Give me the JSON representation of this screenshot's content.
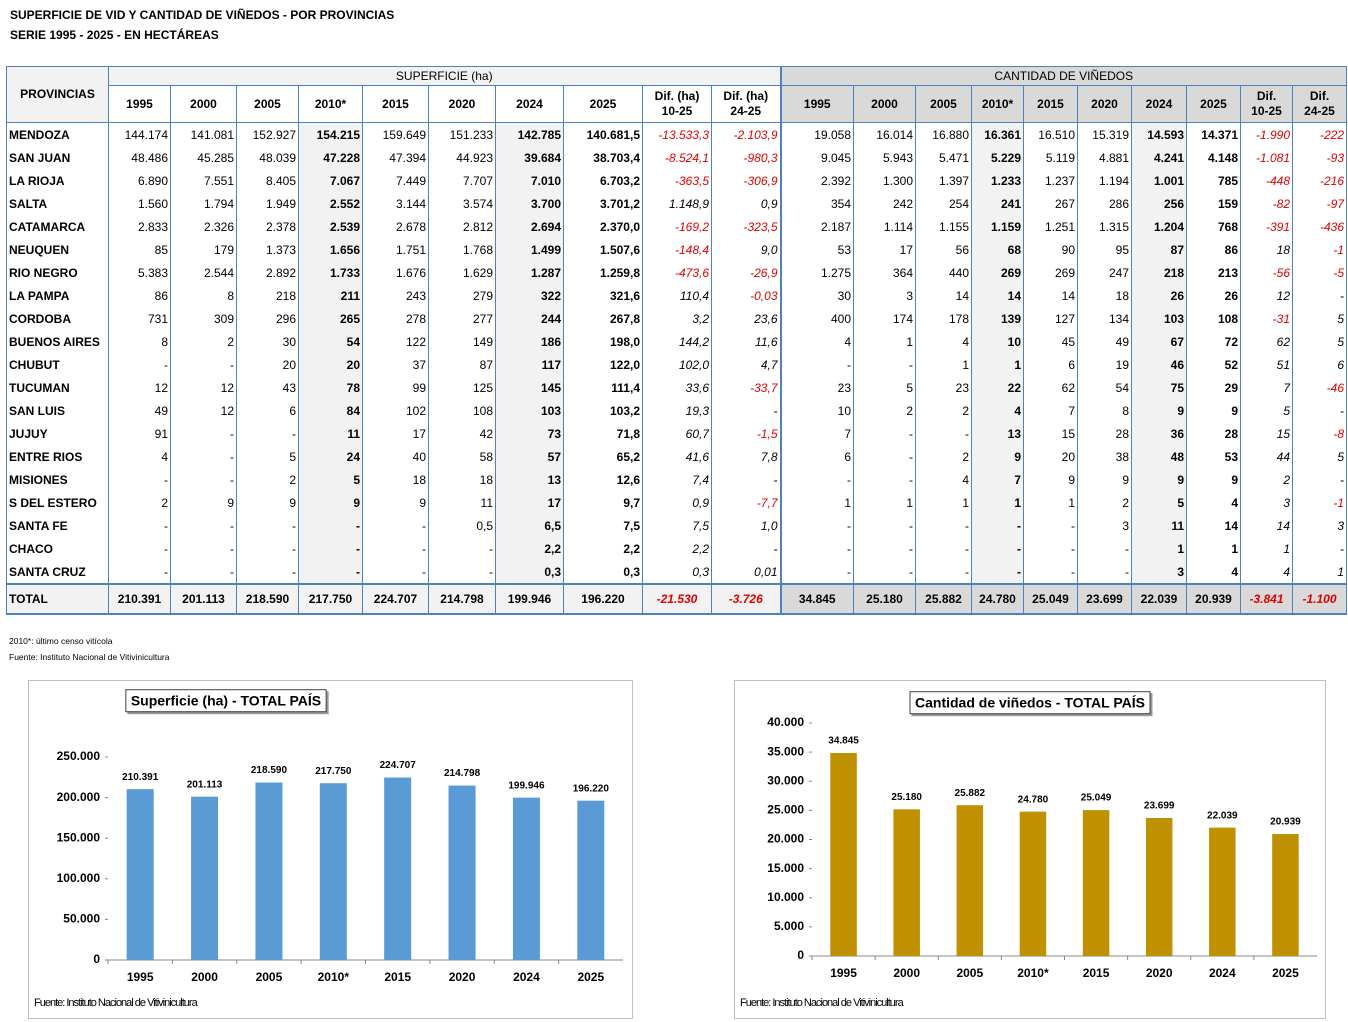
{
  "header": {
    "title": "SUPERFICIE DE VID Y CANTIDAD DE VIÑEDOS - POR PROVINCIAS",
    "subtitle": "SERIE 1995 - 2025 - EN HECTÁREAS"
  },
  "table": {
    "first_header": "PROVINCIAS",
    "group_headers": [
      "SUPERFICIE (ha)",
      "CANTIDAD DE VIÑEDOS"
    ],
    "columns": [
      "1995",
      "2000",
      "2005",
      "2010*",
      "2015",
      "2020",
      "2024",
      "2025",
      "Dif. (ha)\n10-25",
      "Dif. (ha)\n24-25",
      "1995",
      "2000",
      "2005",
      "2010*",
      "2015",
      "2020",
      "2024",
      "2025",
      "Dif.\n10-25",
      "Dif.\n24-25"
    ],
    "rows": [
      [
        "MENDOZA",
        "144.174",
        "141.081",
        "152.927",
        "154.215",
        "159.649",
        "151.233",
        "142.785",
        "140.681,5",
        "-13.533,3",
        "-2.103,9",
        "19.058",
        "16.014",
        "16.880",
        "16.361",
        "16.510",
        "15.319",
        "14.593",
        "14.371",
        "-1.990",
        "-222"
      ],
      [
        "SAN JUAN",
        "48.486",
        "45.285",
        "48.039",
        "47.228",
        "47.394",
        "44.923",
        "39.684",
        "38.703,4",
        "-8.524,1",
        "-980,3",
        "9.045",
        "5.943",
        "5.471",
        "5.229",
        "5.119",
        "4.881",
        "4.241",
        "4.148",
        "-1.081",
        "-93"
      ],
      [
        "LA RIOJA",
        "6.890",
        "7.551",
        "8.405",
        "7.067",
        "7.449",
        "7.707",
        "7.010",
        "6.703,2",
        "-363,5",
        "-306,9",
        "2.392",
        "1.300",
        "1.397",
        "1.233",
        "1.237",
        "1.194",
        "1.001",
        "785",
        "-448",
        "-216"
      ],
      [
        "SALTA",
        "1.560",
        "1.794",
        "1.949",
        "2.552",
        "3.144",
        "3.574",
        "3.700",
        "3.701,2",
        "1.148,9",
        "0,9",
        "354",
        "242",
        "254",
        "241",
        "267",
        "286",
        "256",
        "159",
        "-82",
        "-97"
      ],
      [
        "CATAMARCA",
        "2.833",
        "2.326",
        "2.378",
        "2.539",
        "2.678",
        "2.812",
        "2.694",
        "2.370,0",
        "-169,2",
        "-323,5",
        "2.187",
        "1.114",
        "1.155",
        "1.159",
        "1.251",
        "1.315",
        "1.204",
        "768",
        "-391",
        "-436"
      ],
      [
        "NEUQUEN",
        "85",
        "179",
        "1.373",
        "1.656",
        "1.751",
        "1.768",
        "1.499",
        "1.507,6",
        "-148,4",
        "9,0",
        "53",
        "17",
        "56",
        "68",
        "90",
        "95",
        "87",
        "86",
        "18",
        "-1"
      ],
      [
        "RIO NEGRO",
        "5.383",
        "2.544",
        "2.892",
        "1.733",
        "1.676",
        "1.629",
        "1.287",
        "1.259,8",
        "-473,6",
        "-26,9",
        "1.275",
        "364",
        "440",
        "269",
        "269",
        "247",
        "218",
        "213",
        "-56",
        "-5"
      ],
      [
        "LA PAMPA",
        "86",
        "8",
        "218",
        "211",
        "243",
        "279",
        "322",
        "321,6",
        "110,4",
        "-0,03",
        "30",
        "3",
        "14",
        "14",
        "14",
        "18",
        "26",
        "26",
        "12",
        "-"
      ],
      [
        "CORDOBA",
        "731",
        "309",
        "296",
        "265",
        "278",
        "277",
        "244",
        "267,8",
        "3,2",
        "23,6",
        "400",
        "174",
        "178",
        "139",
        "127",
        "134",
        "103",
        "108",
        "-31",
        "5"
      ],
      [
        "BUENOS AIRES",
        "8",
        "2",
        "30",
        "54",
        "122",
        "149",
        "186",
        "198,0",
        "144,2",
        "11,6",
        "4",
        "1",
        "4",
        "10",
        "45",
        "49",
        "67",
        "72",
        "62",
        "5"
      ],
      [
        "CHUBUT",
        "-",
        "-",
        "20",
        "20",
        "37",
        "87",
        "117",
        "122,0",
        "102,0",
        "4,7",
        "-",
        "-",
        "1",
        "1",
        "6",
        "19",
        "46",
        "52",
        "51",
        "6"
      ],
      [
        "TUCUMAN",
        "12",
        "12",
        "43",
        "78",
        "99",
        "125",
        "145",
        "111,4",
        "33,6",
        "-33,7",
        "23",
        "5",
        "23",
        "22",
        "62",
        "54",
        "75",
        "29",
        "7",
        "-46"
      ],
      [
        "SAN LUIS",
        "49",
        "12",
        "6",
        "84",
        "102",
        "108",
        "103",
        "103,2",
        "19,3",
        "-",
        "10",
        "2",
        "2",
        "4",
        "7",
        "8",
        "9",
        "9",
        "5",
        "-"
      ],
      [
        "JUJUY",
        "91",
        "-",
        "-",
        "11",
        "17",
        "42",
        "73",
        "71,8",
        "60,7",
        "-1,5",
        "7",
        "-",
        "-",
        "13",
        "15",
        "28",
        "36",
        "28",
        "15",
        "-8"
      ],
      [
        "ENTRE RIOS",
        "4",
        "-",
        "5",
        "24",
        "40",
        "58",
        "57",
        "65,2",
        "41,6",
        "7,8",
        "6",
        "-",
        "2",
        "9",
        "20",
        "38",
        "48",
        "53",
        "44",
        "5"
      ],
      [
        "MISIONES",
        "-",
        "-",
        "2",
        "5",
        "18",
        "18",
        "13",
        "12,6",
        "7,4",
        "-",
        "-",
        "-",
        "4",
        "7",
        "9",
        "9",
        "9",
        "9",
        "2",
        "-"
      ],
      [
        "S DEL ESTERO",
        "2",
        "9",
        "9",
        "9",
        "9",
        "11",
        "17",
        "9,7",
        "0,9",
        "-7,7",
        "1",
        "1",
        "1",
        "1",
        "1",
        "2",
        "5",
        "4",
        "3",
        "-1"
      ],
      [
        "SANTA FE",
        "-",
        "-",
        "-",
        "-",
        "-",
        "0,5",
        "6,5",
        "7,5",
        "7,5",
        "1,0",
        "-",
        "-",
        "-",
        "-",
        "-",
        "3",
        "11",
        "14",
        "14",
        "3"
      ],
      [
        "CHACO",
        "-",
        "-",
        "-",
        "-",
        "-",
        "-",
        "2,2",
        "2,2",
        "2,2",
        "-",
        "-",
        "-",
        "-",
        "-",
        "-",
        "-",
        "1",
        "1",
        "1",
        "-"
      ],
      [
        "SANTA CRUZ",
        "-",
        "-",
        "-",
        "-",
        "-",
        "-",
        "0,3",
        "0,3",
        "0,3",
        "0,01",
        "-",
        "-",
        "-",
        "-",
        "-",
        "-",
        "3",
        "4",
        "4",
        "1"
      ]
    ],
    "total": [
      "TOTAL",
      "210.391",
      "201.113",
      "218.590",
      "217.750",
      "224.707",
      "214.798",
      "199.946",
      "196.220",
      "-21.530",
      "-3.726",
      "34.845",
      "25.180",
      "25.882",
      "24.780",
      "25.049",
      "23.699",
      "22.039",
      "20.939",
      "-3.841",
      "-1.100"
    ]
  },
  "footnotes": [
    "2010*:  último   censo  vitícola",
    "Fuente:  Instituto   Nacional   de  Vitivinicultura"
  ],
  "chart_data": [
    {
      "type": "bar",
      "title": "Superficie (ha) - TOTAL PAÍS",
      "categories": [
        "1995",
        "2000",
        "2005",
        "2010*",
        "2015",
        "2020",
        "2024",
        "2025"
      ],
      "values": [
        210391,
        201113,
        218590,
        217750,
        224707,
        214798,
        199946,
        196220
      ],
      "value_labels": [
        "210.391",
        "201.113",
        "218.590",
        "217.750",
        "224.707",
        "214.798",
        "199.946",
        "196.220"
      ],
      "color": "#5b9bd5",
      "ylim": [
        0,
        250000
      ],
      "yticks": [
        0,
        {
          "value": 50000,
          "label": "50.000"
        },
        {
          "value": 100000,
          "label": "100.000"
        },
        {
          "value": 150000,
          "label": "150.000"
        },
        {
          "value": 200000,
          "label": "200.000"
        },
        {
          "value": 250000,
          "label": "250.000"
        }
      ],
      "source": "Fuente: Instituto Nacional de Vitivinicultura"
    },
    {
      "type": "bar",
      "title": "Cantidad de viñedos - TOTAL PAÍS",
      "categories": [
        "1995",
        "2000",
        "2005",
        "2010*",
        "2015",
        "2020",
        "2024",
        "2025"
      ],
      "values": [
        34845,
        25180,
        25882,
        24780,
        25049,
        23699,
        22039,
        20939
      ],
      "value_labels": [
        "34.845",
        "25.180",
        "25.882",
        "24.780",
        "25.049",
        "23.699",
        "22.039",
        "20.939"
      ],
      "color": "#bf9000",
      "ylim": [
        0,
        40000
      ],
      "yticks": [
        0,
        {
          "value": 5000,
          "label": "5.000"
        },
        {
          "value": 10000,
          "label": "10.000"
        },
        {
          "value": 15000,
          "label": "15.000"
        },
        {
          "value": 20000,
          "label": "20.000"
        },
        {
          "value": 25000,
          "label": "25.000"
        },
        {
          "value": 30000,
          "label": "30.000"
        },
        {
          "value": 35000,
          "label": "35.000"
        },
        {
          "value": 40000,
          "label": "40.000"
        }
      ],
      "source": "Fuente: Instituto Nacional de Vitivinicultura"
    }
  ]
}
